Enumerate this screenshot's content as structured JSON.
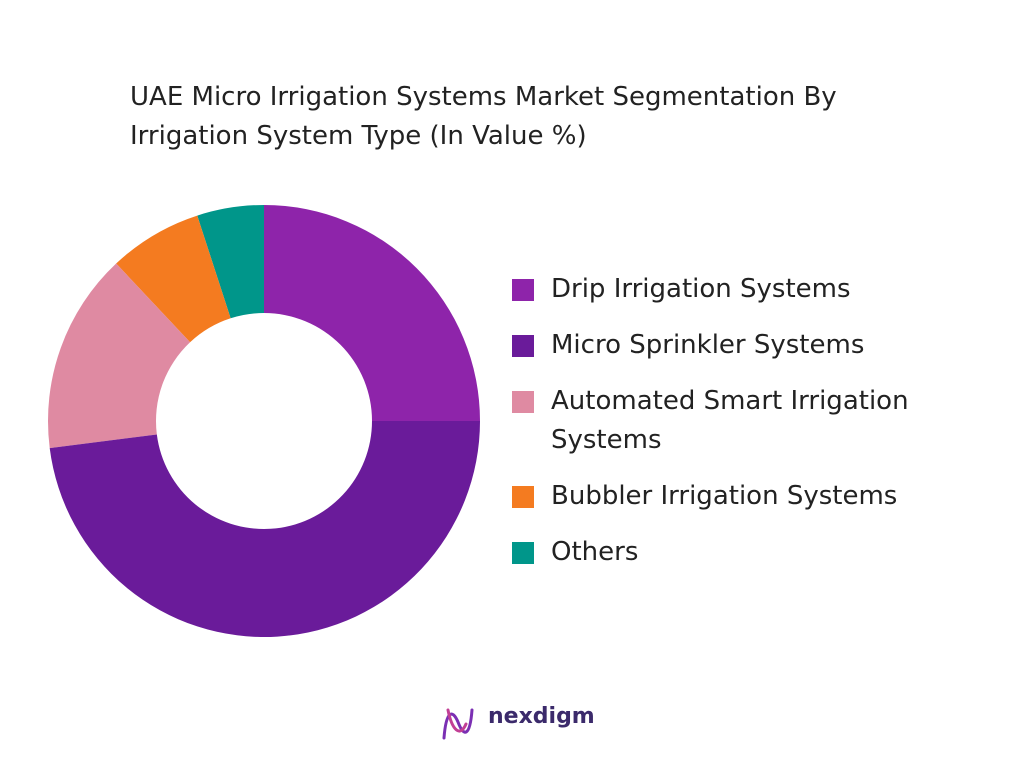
{
  "chart_data": {
    "type": "donut",
    "title": "UAE Micro Irrigation Systems Market Segmentation By Irrigation System Type (In Value %)",
    "categories": [
      "Drip Irrigation Systems",
      "Micro Sprinkler Systems",
      "Automated Smart Irrigation Systems",
      "Bubbler Irrigation Systems",
      "Others"
    ],
    "values": [
      25,
      48,
      15,
      7,
      5
    ],
    "colors": [
      "#8e24aa",
      "#6a1b9a",
      "#df8aa2",
      "#f47b20",
      "#00968a"
    ],
    "legend": "right"
  },
  "brand": "nexdigm"
}
